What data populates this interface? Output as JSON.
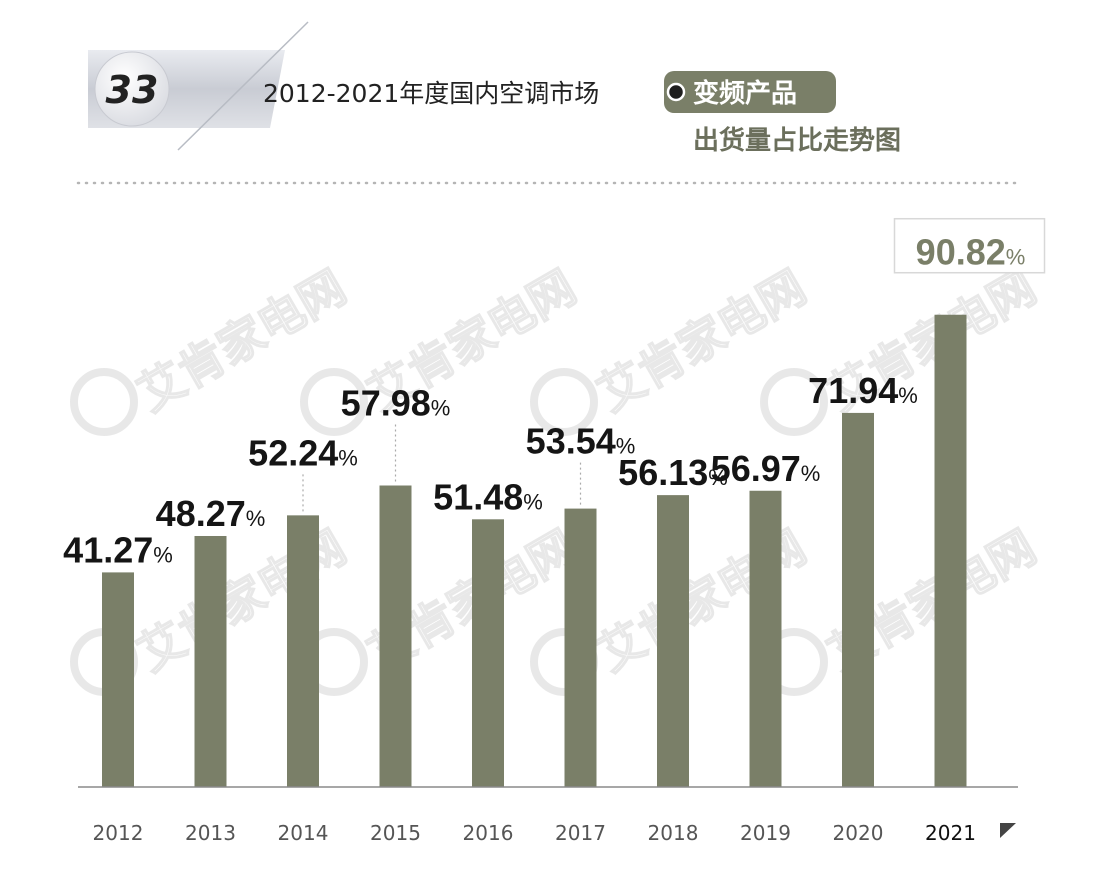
{
  "header": {
    "badge_number": "33",
    "title_line1": "2012-2021年度国内空调市场",
    "title_highlight": "变频产品",
    "title_line2": "出货量占比走势图"
  },
  "watermark": {
    "text": "艾肯家电网"
  },
  "colors": {
    "bar": "#7a7f68",
    "highlight_bg": "#7a7f68",
    "subtitle": "#6b6f5c",
    "axis": "#8a8a8a"
  },
  "chart_data": {
    "type": "bar",
    "categories": [
      "2012",
      "2013",
      "2014",
      "2015",
      "2016",
      "2017",
      "2018",
      "2019",
      "2020",
      "2021"
    ],
    "values": [
      41.27,
      48.27,
      52.24,
      57.98,
      51.48,
      53.54,
      56.13,
      56.97,
      71.94,
      90.82
    ],
    "value_labels": [
      "41.27",
      "48.27",
      "52.24",
      "57.98",
      "51.48",
      "53.54",
      "56.13",
      "56.97",
      "71.94",
      "90.82"
    ],
    "unit": "%",
    "ylim": [
      0,
      100
    ],
    "grid": false,
    "legend": "none"
  }
}
